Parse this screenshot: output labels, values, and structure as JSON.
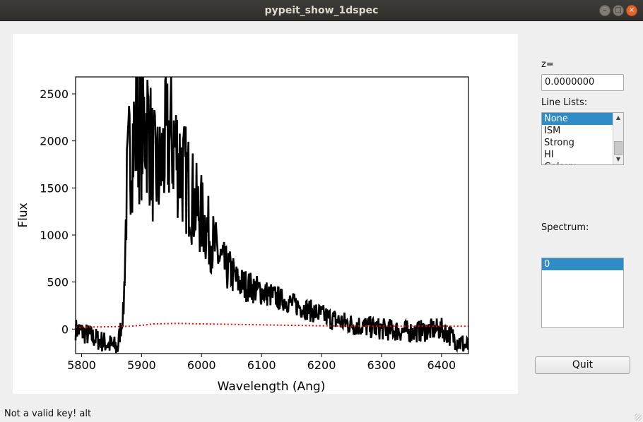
{
  "window": {
    "title": "pypeit_show_1dspec"
  },
  "plot": {
    "xlabel": "Wavelength (Ang)",
    "ylabel": "Flux",
    "xlim": [
      5790,
      6445
    ],
    "ylim": [
      -260,
      2680
    ],
    "xticks": [
      5800,
      5900,
      6000,
      6100,
      6200,
      6300,
      6400
    ],
    "yticks": [
      0,
      500,
      1000,
      1500,
      2000,
      2500
    ],
    "colors": {
      "flux": "#000000",
      "error": "#ff0000",
      "axes": "#000000"
    }
  },
  "chart_data": {
    "type": "line",
    "xlabel": "Wavelength (Ang)",
    "ylabel": "Flux",
    "xlim": [
      5790,
      6445
    ],
    "ylim": [
      -260,
      2680
    ],
    "grid": false,
    "series": [
      {
        "style": "solid black",
        "x": [
          5790,
          5830,
          5860,
          5870,
          5875,
          5880,
          5890,
          5900,
          5910,
          5920,
          5930,
          5940,
          5950,
          5960,
          5970,
          5980,
          5990,
          6000,
          6010,
          6020,
          6030,
          6040,
          6050,
          6060,
          6080,
          6100,
          6120,
          6140,
          6160,
          6180,
          6200,
          6220,
          6250,
          6300,
          6350,
          6400,
          6445
        ],
        "y": [
          0,
          -120,
          -200,
          200,
          1400,
          1900,
          2100,
          2150,
          2200,
          1700,
          1650,
          1950,
          2050,
          1850,
          1650,
          1500,
          1300,
          1200,
          1050,
          900,
          750,
          650,
          600,
          500,
          450,
          400,
          350,
          300,
          250,
          200,
          150,
          100,
          50,
          0,
          -30,
          0,
          -200
        ]
      },
      {
        "style": "dotted red",
        "x": [
          5790,
          5850,
          5880,
          5900,
          5920,
          5960,
          6000,
          6100,
          6200,
          6300,
          6445
        ],
        "y": [
          20,
          25,
          30,
          40,
          55,
          60,
          55,
          45,
          35,
          30,
          30
        ]
      }
    ]
  },
  "sidebar": {
    "z_label": "z=",
    "z_value": "0.0000000",
    "line_lists_label": "Line Lists:",
    "line_lists": [
      "None",
      "ISM",
      "Strong",
      "HI",
      "Galaxy"
    ],
    "line_list_selected": 0,
    "spectrum_label": "Spectrum:",
    "spectra": [
      "0"
    ],
    "spectrum_selected": 0,
    "quit_label": "Quit"
  },
  "status": {
    "message": "Not a valid key!  alt"
  }
}
